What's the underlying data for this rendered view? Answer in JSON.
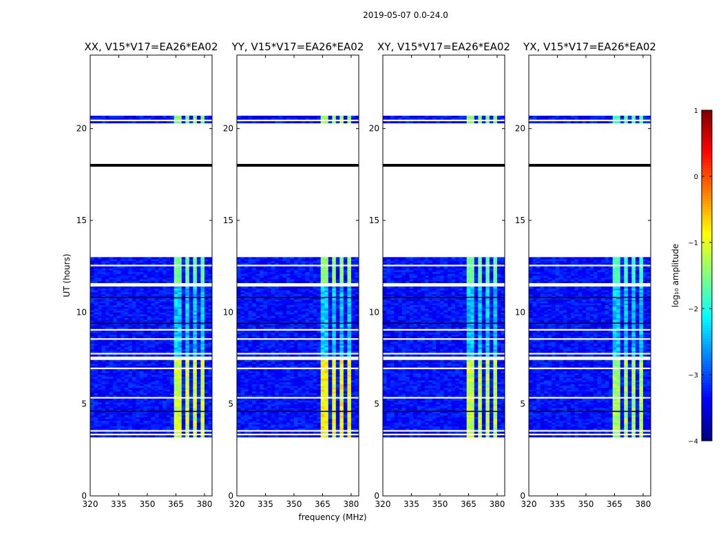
{
  "figure": {
    "suptitle": "2019-05-07 0.0-24.0"
  },
  "chart_data": {
    "type": "heatmap",
    "xlabel": "frequency (MHz)",
    "ylabel": "UT (hours)",
    "xlim": [
      320,
      384
    ],
    "ylim": [
      0,
      24
    ],
    "xticks": [
      320,
      335,
      350,
      365,
      380
    ],
    "yticks": [
      0,
      5,
      10,
      15,
      20
    ],
    "colorbar": {
      "label": "log₁₀ amplitude",
      "range": [
        -4,
        1
      ],
      "ticks": [
        1,
        0,
        -1,
        -2,
        -3,
        -4
      ],
      "tick_labels": [
        "1",
        "0",
        "−1",
        "−2",
        "−3",
        "−4"
      ],
      "colormap": [
        "#00007f",
        "#0000ff",
        "#007fff",
        "#00ffff",
        "#7fff7f",
        "#ffff00",
        "#ff7f00",
        "#ff0000",
        "#7f0000"
      ]
    },
    "panels": [
      {
        "title": "XX, V15*V17=EA26*EA02",
        "band_level": -1.3,
        "alt_level": -0.9
      },
      {
        "title": "YY, V15*V17=EA26*EA02",
        "band_level": -1.1,
        "alt_level": -0.7
      },
      {
        "title": "XY, V15*V17=EA26*EA02",
        "band_level": -1.3,
        "alt_level": -1.0
      },
      {
        "title": "YX, V15*V17=EA26*EA02",
        "band_level": -1.5,
        "alt_level": -1.1
      }
    ],
    "data_time_ranges_hours": [
      [
        3.2,
        7.4
      ],
      [
        7.6,
        13.0
      ],
      [
        20.3,
        20.7
      ]
    ],
    "blank_time_ranges_hours": [
      [
        3.35,
        3.45
      ],
      [
        3.55,
        3.6
      ],
      [
        4.3,
        4.35
      ],
      [
        5.3,
        5.35
      ],
      [
        5.55,
        5.6
      ],
      [
        6.9,
        7.0
      ],
      [
        7.15,
        7.2
      ],
      [
        7.7,
        7.75
      ],
      [
        8.5,
        8.55
      ],
      [
        9.0,
        9.05
      ],
      [
        10.05,
        10.1
      ],
      [
        11.4,
        11.55
      ],
      [
        12.45,
        12.55
      ],
      [
        20.45,
        20.5
      ]
    ],
    "dark_line_hours": [
      4.6,
      9.4,
      10.8
    ],
    "black_line_hour": 18.0,
    "rfi_band_mhz": [
      363.5,
      379.5
    ],
    "rfi_gaps_mhz": [
      [
        368,
        369
      ],
      [
        372,
        373
      ],
      [
        376,
        377
      ]
    ],
    "base_level": -3.3
  }
}
